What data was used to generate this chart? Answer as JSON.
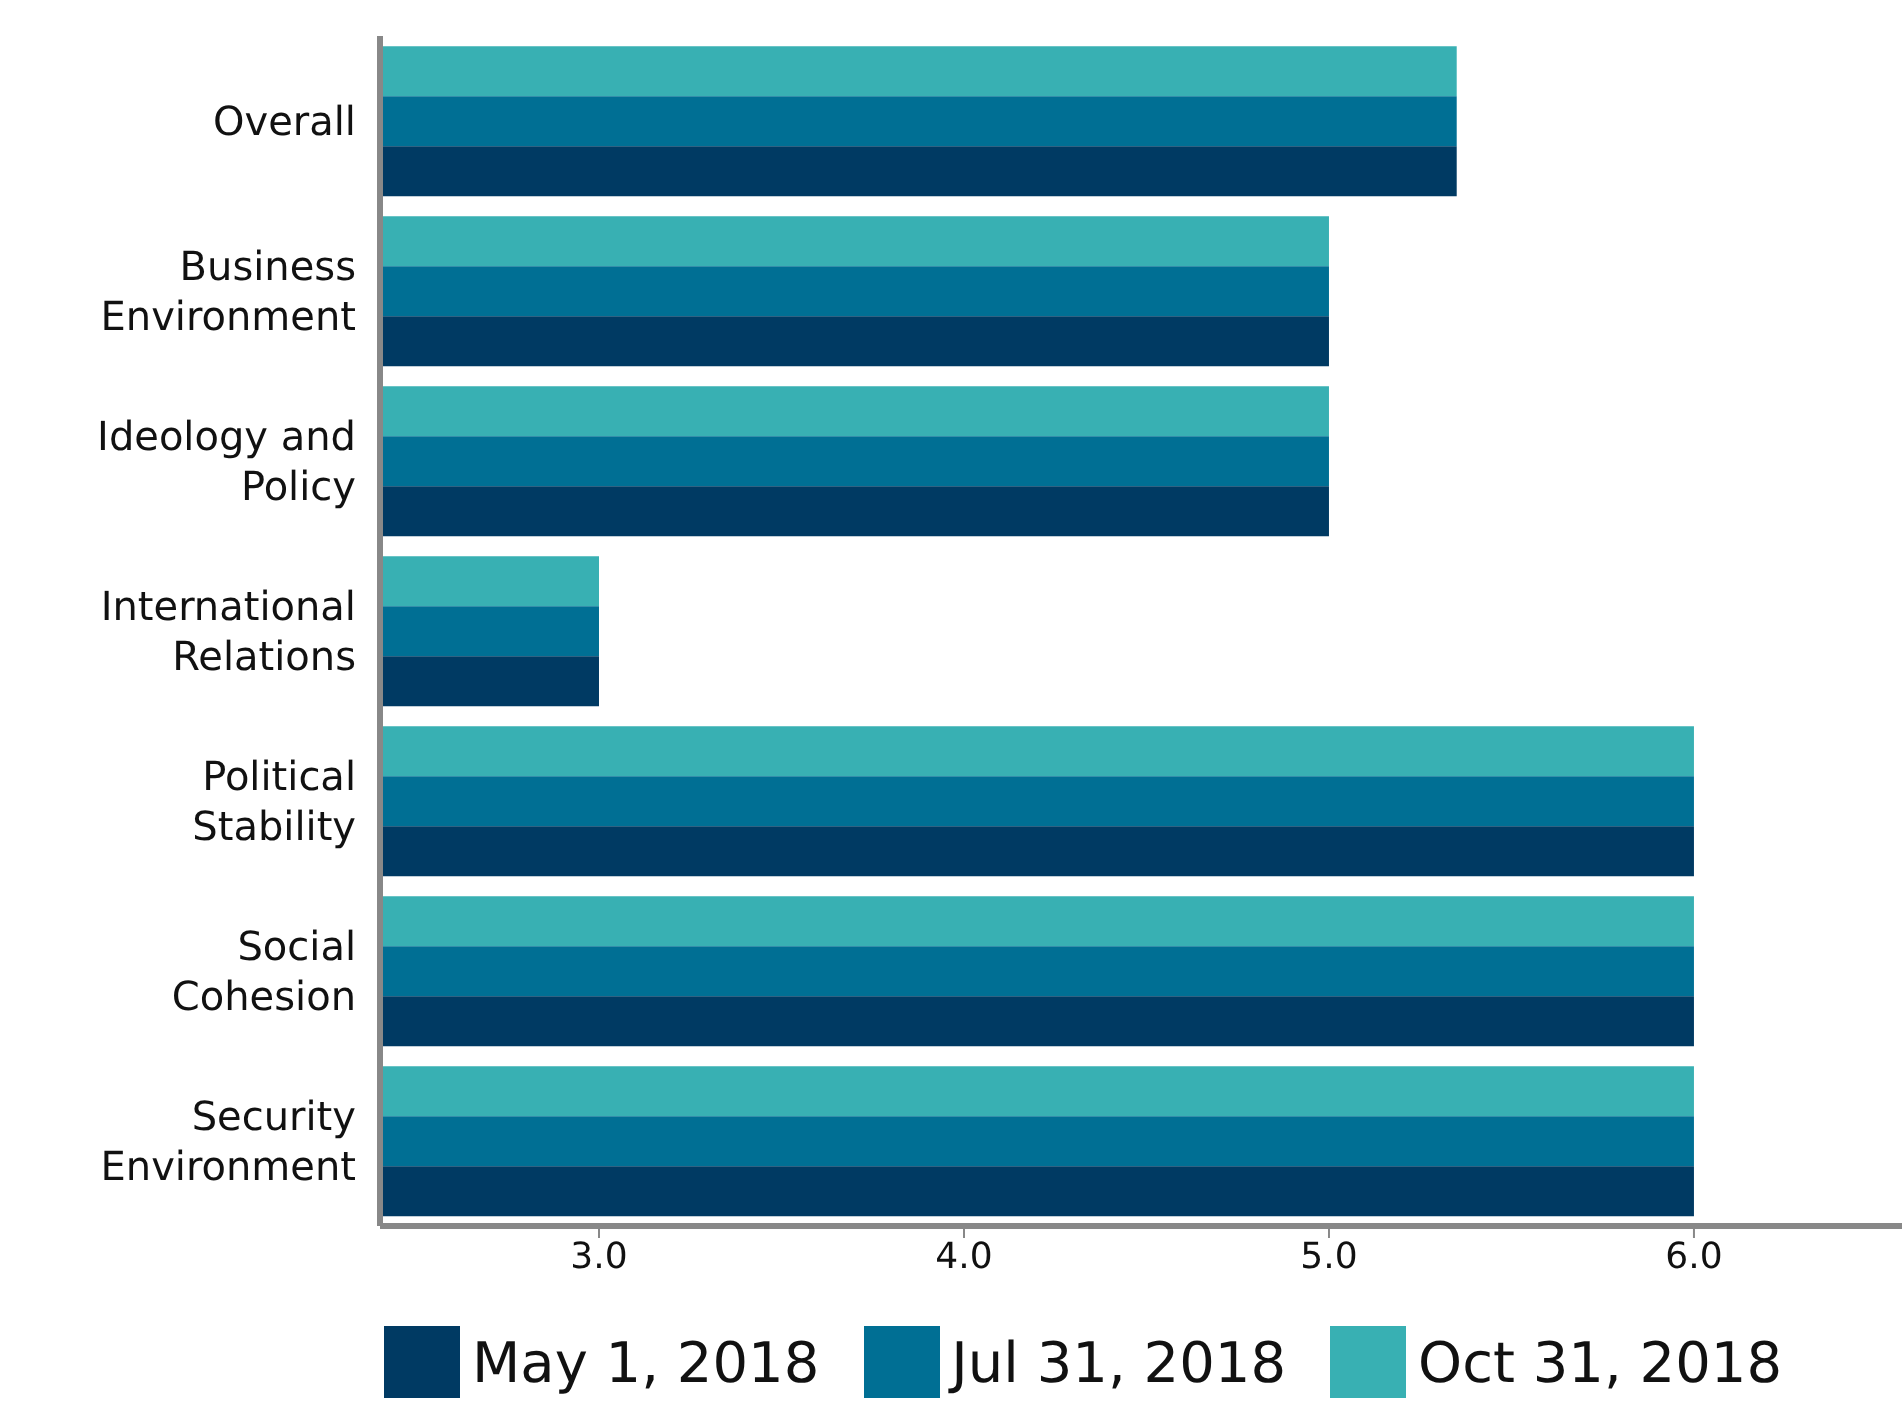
{
  "chart_data": {
    "type": "bar",
    "orientation": "horizontal",
    "categories": [
      "Overall",
      "Business Environment",
      "Ideology and Policy",
      "International Relations",
      "Political Stability",
      "Social Cohesion",
      "Security Environment"
    ],
    "series": [
      {
        "name": "May 1, 2018",
        "color": "#003a63",
        "values": [
          5.35,
          5,
          5,
          3,
          6,
          6,
          6
        ]
      },
      {
        "name": "Jul 31, 2018",
        "color": "#006f94",
        "values": [
          5.35,
          5,
          5,
          3,
          6,
          6,
          6
        ]
      },
      {
        "name": "Oct 31, 2018",
        "color": "#38b0b3",
        "values": [
          5.35,
          5,
          5,
          3,
          6,
          6,
          6
        ]
      }
    ],
    "xlim": [
      2.4,
      6.57
    ],
    "xticks": [
      {
        "value": 3,
        "label": "3.0"
      },
      {
        "value": 4,
        "label": "4.0"
      },
      {
        "value": 5,
        "label": "5.0"
      },
      {
        "value": 6,
        "label": "6.0"
      }
    ],
    "grid": false,
    "legend": "bottom"
  }
}
